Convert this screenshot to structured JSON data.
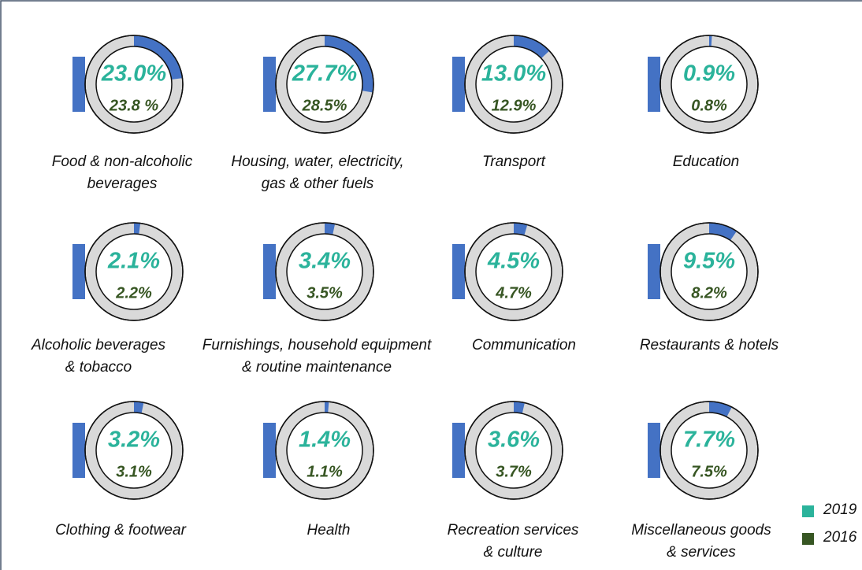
{
  "chart_data": {
    "type": "donut",
    "categories": [
      "Food & non-alcoholic\nbeverages",
      "Housing, water, electricity,\ngas & other fuels",
      "Transport",
      "Education",
      "Alcoholic beverages\n& tobacco",
      "Furnishings, household equipment\n& routine maintenance",
      "Communication",
      "Restaurants & hotels",
      "Clothing & footwear",
      "Health",
      "Recreation services\n& culture",
      "Miscellaneous goods\n& services"
    ],
    "series": [
      {
        "name": "2019",
        "color": "#2bb39b",
        "values": [
          23.0,
          27.7,
          13.0,
          0.9,
          2.1,
          3.4,
          4.5,
          9.5,
          3.2,
          1.4,
          3.6,
          7.7
        ],
        "value_labels": [
          "23.0%",
          "27.7%",
          "13.0%",
          "0.9%",
          "2.1%",
          "3.4%",
          "4.5%",
          "9.5%",
          "3.2%",
          "1.4%",
          "3.6%",
          "7.7%"
        ]
      },
      {
        "name": "2016",
        "color": "#375623",
        "values": [
          23.8,
          28.5,
          12.9,
          0.8,
          2.2,
          3.5,
          4.7,
          8.2,
          3.1,
          1.1,
          3.7,
          7.5
        ],
        "value_labels": [
          "23.8 %",
          "28.5%",
          "12.9%",
          "0.8%",
          "2.2%",
          "3.5%",
          "4.7%",
          "8.2%",
          "3.1%",
          "1.1%",
          "3.7%",
          "7.5%"
        ]
      }
    ],
    "arc_color": "#4472c4"
  }
}
